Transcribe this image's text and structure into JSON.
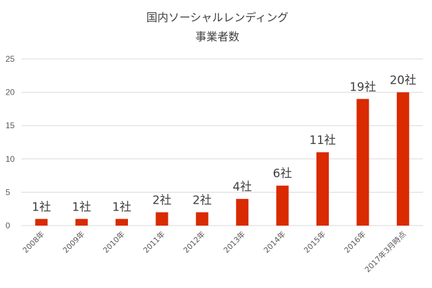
{
  "chart_data": {
    "type": "bar",
    "title": "国内ソーシャルレンディング",
    "subtitle": "事業者数",
    "categories": [
      "2008年",
      "2009年",
      "2010年",
      "2011年",
      "2012年",
      "2013年",
      "2014年",
      "2015年",
      "2016年",
      "2017年3月時点"
    ],
    "values": [
      1,
      1,
      1,
      2,
      2,
      4,
      6,
      11,
      19,
      20
    ],
    "data_labels": [
      "1社",
      "1社",
      "1社",
      "2社",
      "2社",
      "4社",
      "6社",
      "11社",
      "19社",
      "20社"
    ],
    "y_ticks": [
      "0",
      "5",
      "10",
      "15",
      "20",
      "25"
    ],
    "ylim": [
      0,
      25
    ],
    "y_step": 5,
    "xlabel": "",
    "ylabel": "",
    "grid": true,
    "legend": "none",
    "bar_color": "#d92a00",
    "grid_color": "#d9d9d9"
  }
}
